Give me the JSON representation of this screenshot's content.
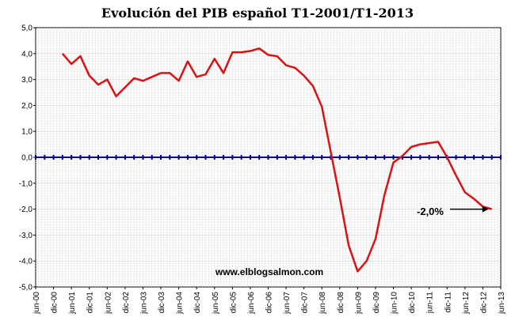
{
  "chart_data": {
    "type": "line",
    "title": "Evolución del PIB español T1-2001/T1-2013",
    "xlabel": "",
    "ylabel": "",
    "ylim": [
      -5,
      5
    ],
    "ytick_labels": [
      "5,0",
      "4,0",
      "3,0",
      "2,0",
      "1,0",
      "0,0",
      "-1,0",
      "-2,0",
      "-3,0",
      "-4,0",
      "-5,0"
    ],
    "ytick_values": [
      5,
      4,
      3,
      2,
      1,
      0,
      -1,
      -2,
      -3,
      -4,
      -5
    ],
    "xtick_labels": [
      "jun-00",
      "dic-00",
      "jun-01",
      "dic-01",
      "jun-02",
      "dic-02",
      "jun-03",
      "dic-03",
      "jun-04",
      "dic-04",
      "jun-05",
      "dic-05",
      "jun-06",
      "dic-06",
      "jun-07",
      "dic-07",
      "jun-08",
      "dic-08",
      "jun-09",
      "dic-09",
      "jun-10",
      "dic-10",
      "jun-11",
      "dic-11",
      "jun-12",
      "dic-12",
      "jun-13"
    ],
    "grid": true,
    "series": [
      {
        "color": "#dd1111",
        "x": [
          "T1-2001",
          "T2-2001",
          "T3-2001",
          "T4-2001",
          "T1-2002",
          "T2-2002",
          "T3-2002",
          "T4-2002",
          "T1-2003",
          "T2-2003",
          "T3-2003",
          "T4-2003",
          "T1-2004",
          "T2-2004",
          "T3-2004",
          "T4-2004",
          "T1-2005",
          "T2-2005",
          "T3-2005",
          "T4-2005",
          "T1-2006",
          "T2-2006",
          "T3-2006",
          "T4-2006",
          "T1-2007",
          "T2-2007",
          "T3-2007",
          "T4-2007",
          "T1-2008",
          "T2-2008",
          "T3-2008",
          "T4-2008",
          "T1-2009",
          "T2-2009",
          "T3-2009",
          "T4-2009",
          "T1-2010",
          "T2-2010",
          "T3-2010",
          "T4-2010",
          "T1-2011",
          "T2-2011",
          "T3-2011",
          "T4-2011",
          "T1-2012",
          "T2-2012",
          "T3-2012",
          "T4-2012",
          "T1-2013"
        ],
        "values": [
          4.0,
          3.6,
          3.9,
          3.15,
          2.8,
          3.0,
          2.35,
          2.7,
          3.05,
          2.95,
          3.1,
          3.25,
          3.25,
          2.95,
          3.7,
          3.1,
          3.2,
          3.8,
          3.25,
          4.05,
          4.05,
          4.1,
          4.2,
          3.95,
          3.9,
          3.55,
          3.45,
          3.15,
          2.75,
          1.95,
          0.2,
          -1.55,
          -3.4,
          -4.4,
          -4.0,
          -3.15,
          -1.45,
          -0.2,
          0.05,
          0.4,
          0.5,
          0.55,
          0.6,
          0.0,
          -0.7,
          -1.35,
          -1.6,
          -1.9,
          -2.0
        ]
      }
    ],
    "zero_line_color": "#0000aa",
    "annotation": {
      "text": "-2,0%",
      "target": "T1-2013"
    },
    "source_label": "www.elblogsalmon.com"
  }
}
